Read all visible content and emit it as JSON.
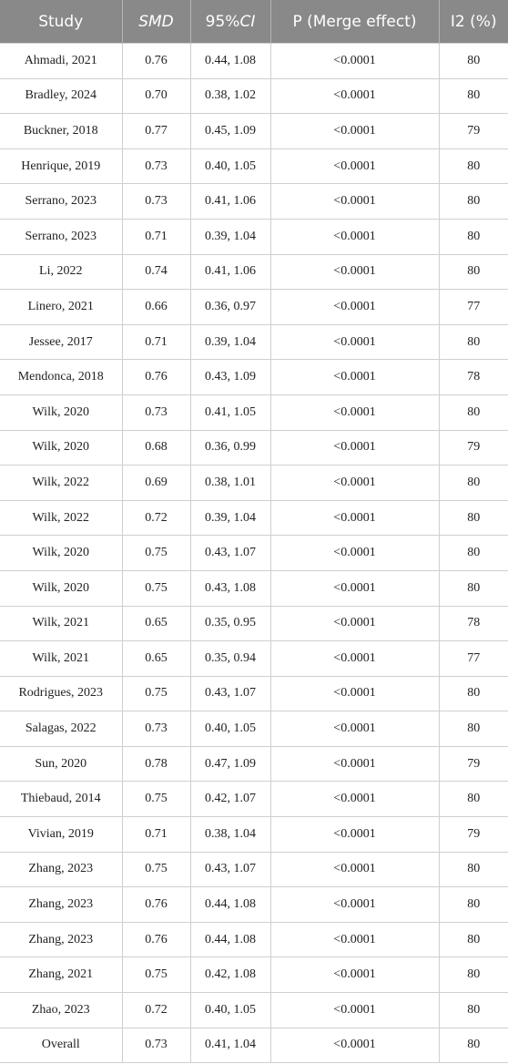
{
  "table": {
    "header": [
      "Study",
      "SMD",
      [
        "95%",
        "CI"
      ],
      "P (Merge effect)",
      "I2 (%)"
    ],
    "rows": [
      [
        "Ahmadi, 2021",
        "0.76",
        "0.44, 1.08",
        "<0.0001",
        "80"
      ],
      [
        "Bradley, 2024",
        "0.70",
        "0.38, 1.02",
        "<0.0001",
        "80"
      ],
      [
        "Buckner, 2018",
        "0.77",
        "0.45, 1.09",
        "<0.0001",
        "79"
      ],
      [
        "Henrique, 2019",
        "0.73",
        "0.40, 1.05",
        "<0.0001",
        "80"
      ],
      [
        "Serrano, 2023",
        "0.73",
        "0.41, 1.06",
        "<0.0001",
        "80"
      ],
      [
        "Serrano, 2023",
        "0.71",
        "0.39, 1.04",
        "<0.0001",
        "80"
      ],
      [
        "Li, 2022",
        "0.74",
        "0.41, 1.06",
        "<0.0001",
        "80"
      ],
      [
        "Linero, 2021",
        "0.66",
        "0.36, 0.97",
        "<0.0001",
        "77"
      ],
      [
        "Jessee, 2017",
        "0.71",
        "0.39, 1.04",
        "<0.0001",
        "80"
      ],
      [
        "Mendonca, 2018",
        "0.76",
        "0.43, 1.09",
        "<0.0001",
        "78"
      ],
      [
        "Wilk, 2020",
        "0.73",
        "0.41, 1.05",
        "<0.0001",
        "80"
      ],
      [
        "Wilk, 2020",
        "0.68",
        "0.36, 0.99",
        "<0.0001",
        "79"
      ],
      [
        "Wilk, 2022",
        "0.69",
        "0.38, 1.01",
        "<0.0001",
        "80"
      ],
      [
        "Wilk, 2022",
        "0.72",
        "0.39, 1.04",
        "<0.0001",
        "80"
      ],
      [
        "Wilk, 2020",
        "0.75",
        "0.43, 1.07",
        "<0.0001",
        "80"
      ],
      [
        "Wilk, 2020",
        "0.75",
        "0.43, 1.08",
        "<0.0001",
        "80"
      ],
      [
        "Wilk, 2021",
        "0.65",
        "0.35, 0.95",
        "<0.0001",
        "78"
      ],
      [
        "Wilk, 2021",
        "0.65",
        "0.35, 0.94",
        "<0.0001",
        "77"
      ],
      [
        "Rodrigues, 2023",
        "0.75",
        "0.43, 1.07",
        "<0.0001",
        "80"
      ],
      [
        "Salagas, 2022",
        "0.73",
        "0.40, 1.05",
        "<0.0001",
        "80"
      ],
      [
        "Sun, 2020",
        "0.78",
        "0.47, 1.09",
        "<0.0001",
        "79"
      ],
      [
        "Thiebaud, 2014",
        "0.75",
        "0.42, 1.07",
        "<0.0001",
        "80"
      ],
      [
        "Vivian, 2019",
        "0.71",
        "0.38, 1.04",
        "<0.0001",
        "79"
      ],
      [
        "Zhang, 2023",
        "0.75",
        "0.43, 1.07",
        "<0.0001",
        "80"
      ],
      [
        "Zhang, 2023",
        "0.76",
        "0.44, 1.08",
        "<0.0001",
        "80"
      ],
      [
        "Zhang, 2023",
        "0.76",
        "0.44, 1.08",
        "<0.0001",
        "80"
      ],
      [
        "Zhang, 2021",
        "0.75",
        "0.42, 1.08",
        "<0.0001",
        "80"
      ],
      [
        "Zhao, 2023",
        "0.72",
        "0.40, 1.05",
        "<0.0001",
        "80"
      ],
      [
        "Overall",
        "0.73",
        "0.41, 1.04",
        "<0.0001",
        "80"
      ]
    ]
  }
}
